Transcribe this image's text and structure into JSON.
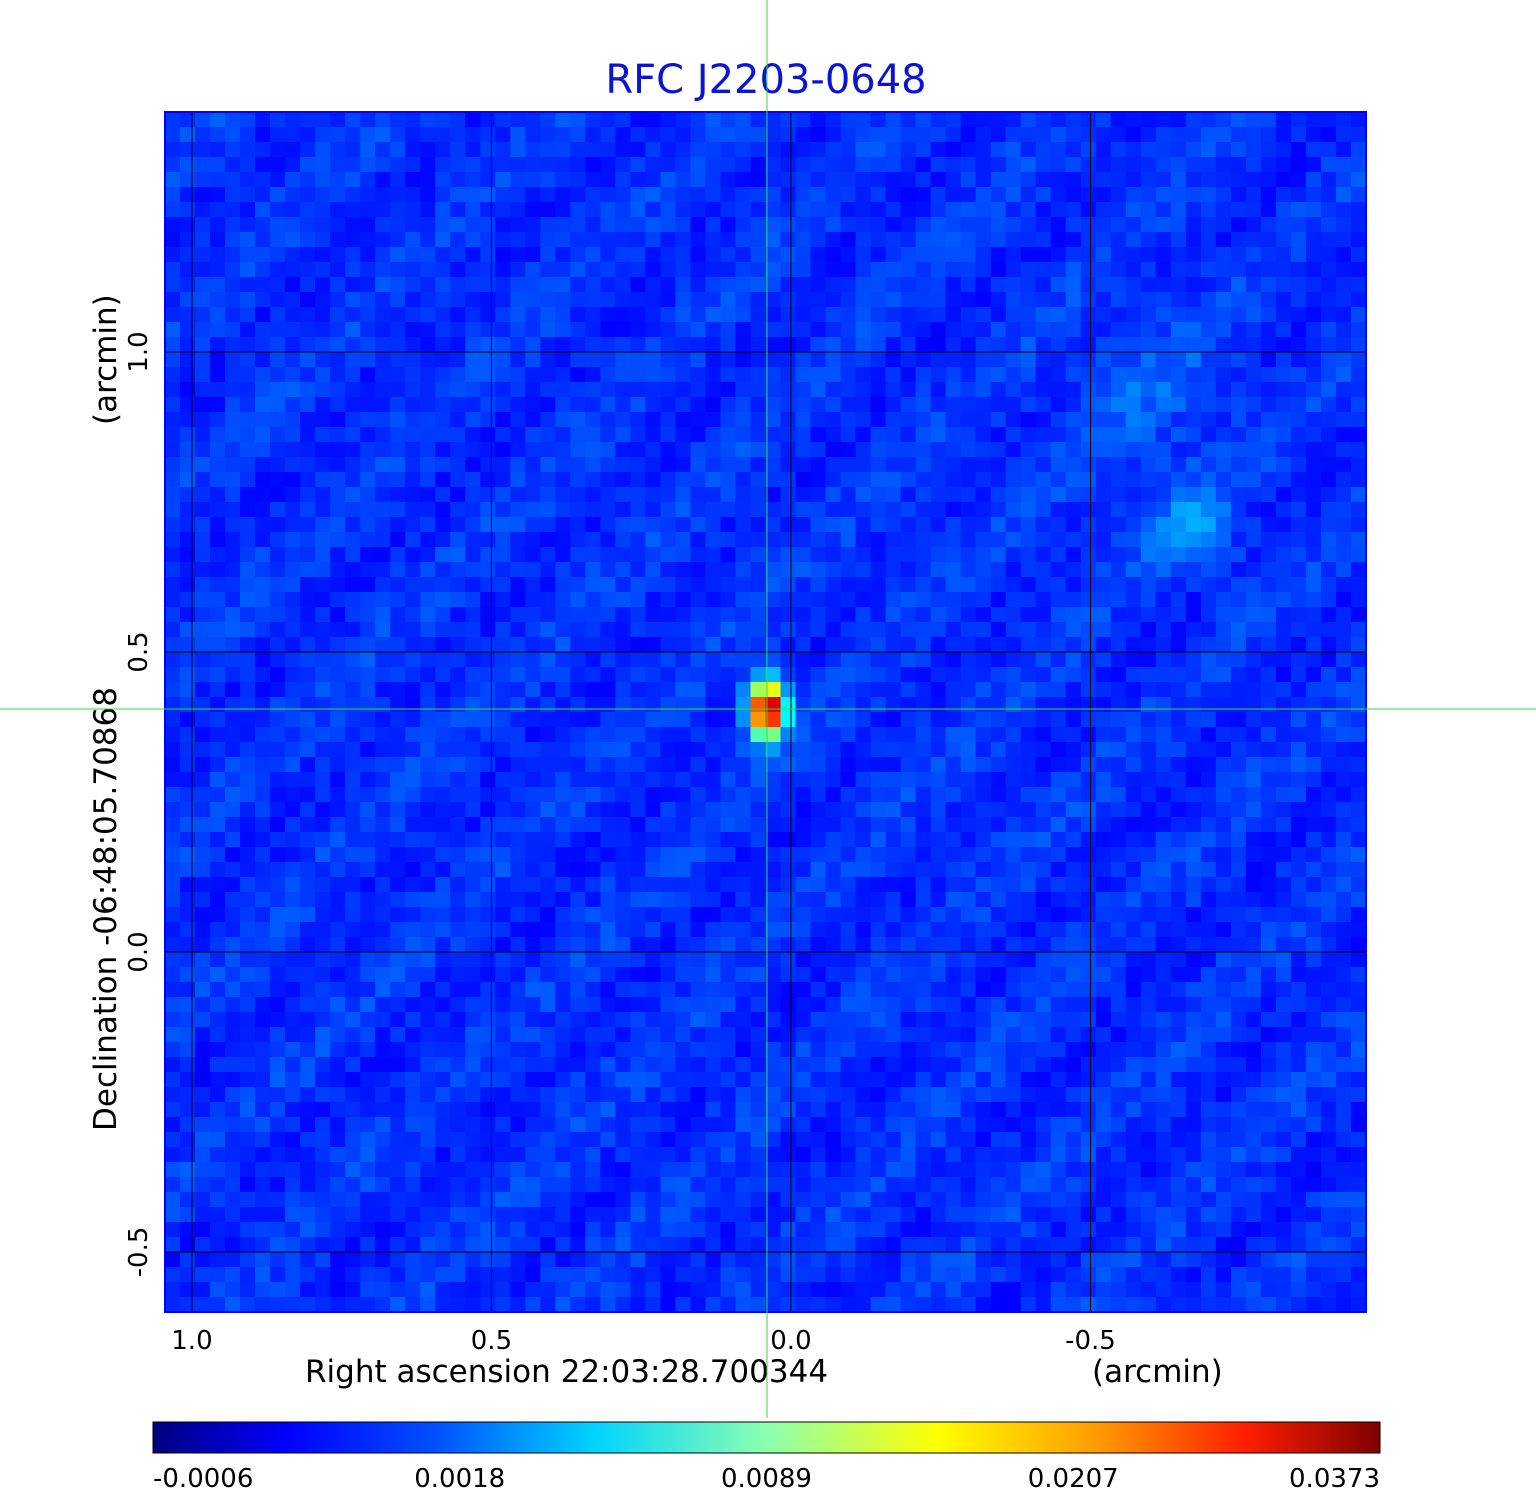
{
  "chart_data": {
    "type": "heatmap",
    "title": "RFC J2203-0648",
    "xlabel": "Right ascension  22:03:28.700344",
    "xlabel_unit": "(arcmin)",
    "ylabel": "Declination  -06:48:05.70868",
    "ylabel_unit": "(arcmin)",
    "x_ticks": [
      1.0,
      0.5,
      0.0,
      -0.5
    ],
    "x_tick_labels": [
      "1.0",
      "0.5",
      "0.0",
      "-0.5"
    ],
    "y_ticks": [
      1.0,
      0.5,
      0.0,
      -0.5
    ],
    "y_tick_labels": [
      "1.0",
      "0.5",
      "0.0",
      "-0.5"
    ],
    "xlim": [
      1.045,
      -0.96
    ],
    "ylim": [
      -0.6,
      1.4
    ],
    "grid": true,
    "crosshair": {
      "x": 0.04,
      "y": 0.405
    },
    "sources": [
      {
        "x": 0.04,
        "y": 0.405,
        "peak": 0.0373
      },
      {
        "x": -0.67,
        "y": 0.7,
        "peak": 0.0016
      }
    ],
    "colorbar": {
      "colormap": "jet",
      "tick_labels": [
        "-0.0006",
        "0.0018",
        "0.0089",
        "0.0207",
        "0.0373"
      ],
      "min": -0.0006,
      "max": 0.0373
    }
  },
  "colors": {
    "title": "#0a14d2",
    "grid": "#000000",
    "crosshair": "#33dd33",
    "frame": "#0000ff"
  }
}
